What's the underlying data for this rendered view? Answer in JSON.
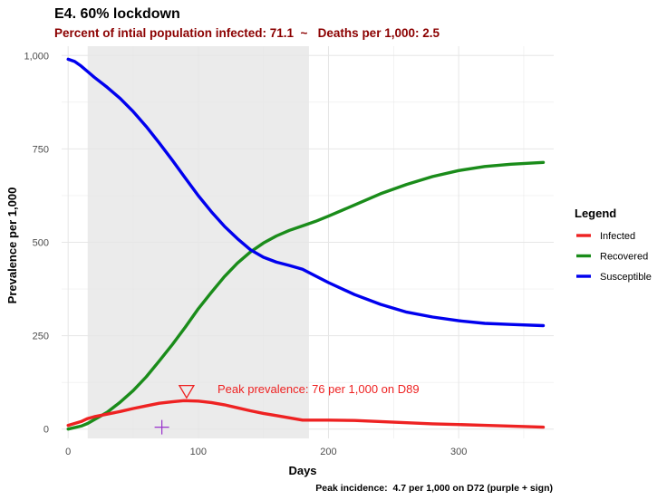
{
  "chart_data": {
    "type": "line",
    "title": "E4. 60% lockdown",
    "subtitle": "Percent of intial population infected: 71.1  ~   Deaths per 1,000: 2.5",
    "xlabel": "Days",
    "ylabel": "Prevalence per 1,000",
    "xlim": [
      -5,
      373
    ],
    "ylim": [
      -25,
      1025
    ],
    "x_ticks": [
      0,
      100,
      200,
      300
    ],
    "x_tick_labels": [
      "0",
      "100",
      "200",
      "300"
    ],
    "y_ticks": [
      0,
      250,
      500,
      750,
      1000
    ],
    "y_tick_labels": [
      "0",
      "250",
      "500",
      "750",
      "1,000"
    ],
    "grid": true,
    "lockdown_period": [
      15,
      185
    ],
    "legend": {
      "title": "Legend",
      "position": "right",
      "entries": [
        {
          "label": "Infected",
          "color": "#ee2222"
        },
        {
          "label": "Recovered",
          "color": "#1a8c1a"
        },
        {
          "label": "Susceptible",
          "color": "#0000ee"
        }
      ]
    },
    "series": [
      {
        "name": "Infected",
        "color": "#ee2222",
        "x": [
          0,
          10,
          15,
          20,
          30,
          40,
          50,
          60,
          70,
          80,
          89,
          100,
          110,
          120,
          130,
          140,
          150,
          160,
          170,
          180,
          190,
          200,
          220,
          240,
          260,
          280,
          300,
          320,
          340,
          365
        ],
        "y": [
          10,
          20,
          28,
          33,
          40,
          47,
          55,
          62,
          69,
          73,
          76,
          75,
          71,
          65,
          57,
          49,
          42,
          36,
          30,
          24,
          24,
          24,
          23,
          20,
          17,
          14,
          12,
          10,
          8,
          5
        ]
      },
      {
        "name": "Recovered",
        "color": "#1a8c1a",
        "x": [
          0,
          10,
          15,
          20,
          30,
          40,
          50,
          60,
          70,
          80,
          90,
          100,
          110,
          120,
          130,
          140,
          150,
          160,
          170,
          180,
          190,
          200,
          220,
          240,
          260,
          280,
          300,
          320,
          340,
          365
        ],
        "y": [
          0,
          8,
          15,
          25,
          45,
          72,
          103,
          140,
          182,
          226,
          273,
          322,
          366,
          408,
          444,
          474,
          498,
          517,
          532,
          544,
          556,
          570,
          600,
          630,
          655,
          676,
          692,
          703,
          709,
          714
        ]
      },
      {
        "name": "Susceptible",
        "color": "#0000ee",
        "x": [
          0,
          5,
          10,
          15,
          20,
          30,
          40,
          50,
          60,
          70,
          80,
          90,
          100,
          110,
          120,
          130,
          140,
          150,
          160,
          170,
          180,
          190,
          200,
          220,
          240,
          260,
          280,
          300,
          320,
          340,
          365
        ],
        "y": [
          990,
          984,
          972,
          957,
          942,
          915,
          885,
          850,
          810,
          766,
          720,
          672,
          625,
          582,
          543,
          510,
          480,
          460,
          447,
          438,
          428,
          410,
          392,
          360,
          334,
          313,
          300,
          290,
          283,
          280,
          277
        ]
      }
    ],
    "annotations": [
      {
        "type": "text",
        "text": "Peak prevalence: 76 per 1,000 on D89",
        "x": 115,
        "y": 100,
        "color": "#ee2222"
      },
      {
        "type": "marker",
        "shape": "inverted-triangle",
        "x": 91,
        "y": 101,
        "color": "#ee2222"
      },
      {
        "type": "marker",
        "shape": "plus",
        "x": 72,
        "y": 5,
        "color": "#9933cc"
      }
    ],
    "caption": "Peak incidence:  4.7 per 1,000 on D72 (purple + sign)"
  },
  "colors": {
    "subtitle": "#8b0000",
    "lockdown_band": "#ebebeb",
    "grid": "#e6e6e6",
    "annotation": "#ee2222",
    "incidence_marker": "#9933cc"
  }
}
